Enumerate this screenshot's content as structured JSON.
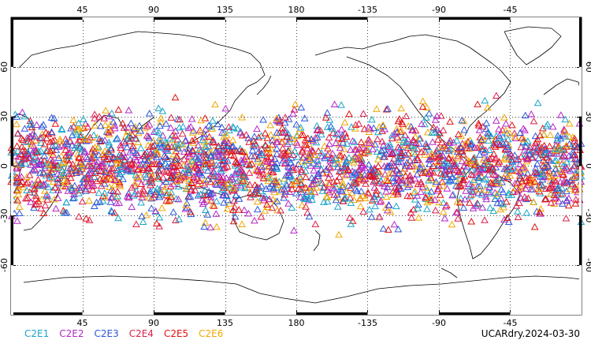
{
  "chart_data": {
    "type": "scatter",
    "map": "world, 0-360 longitude (Pacific centered)",
    "marker": "triangle",
    "x_range": [
      0,
      360
    ],
    "y_range": [
      -90,
      90
    ],
    "x_ticks": [
      "45",
      "90",
      "135",
      "180",
      "-135",
      "-90",
      "-45"
    ],
    "y_ticks_left": [
      "60",
      "30",
      "0",
      "-30",
      "-60"
    ],
    "y_ticks_right": [
      "60",
      "30",
      "0",
      "-30",
      "-60"
    ],
    "lat_band": [
      -45,
      45
    ],
    "grid": true,
    "series": [
      {
        "name": "C2E1",
        "color": "#1aa6c9"
      },
      {
        "name": "C2E2",
        "color": "#b526c8"
      },
      {
        "name": "C2E3",
        "color": "#2c57d9"
      },
      {
        "name": "C2E4",
        "color": "#dc1f4a"
      },
      {
        "name": "C2E5",
        "color": "#e01010"
      },
      {
        "name": "C2E6",
        "color": "#f0a800"
      }
    ],
    "run_label": "UCARdry.2024-03-30"
  }
}
